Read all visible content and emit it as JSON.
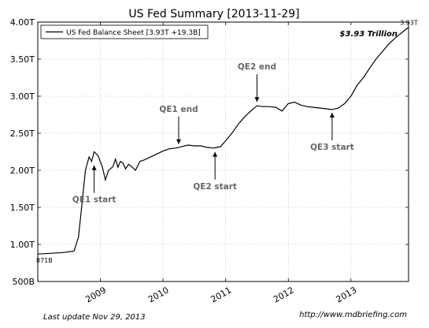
{
  "chart_data": {
    "type": "line",
    "title": "US Fed Summary  [2013-11-29]",
    "xlabel": "",
    "ylabel": "",
    "xlim": [
      2008.0,
      2013.92
    ],
    "ylim": [
      0.5,
      4.0
    ],
    "grid": true,
    "legend": {
      "placement": "top-left",
      "entries": [
        "US Fed Balance Sheet [3.93T +19.3B]"
      ]
    },
    "x_ticks": [
      {
        "value": 2009,
        "label": "2009"
      },
      {
        "value": 2010,
        "label": "2010"
      },
      {
        "value": 2011,
        "label": "2011"
      },
      {
        "value": 2012,
        "label": "2012"
      },
      {
        "value": 2013,
        "label": "2013"
      }
    ],
    "y_ticks": [
      {
        "value": 0.5,
        "label": "500B"
      },
      {
        "value": 1.0,
        "label": "1.00T"
      },
      {
        "value": 1.5,
        "label": "1.50T"
      },
      {
        "value": 2.0,
        "label": "2.00T"
      },
      {
        "value": 2.5,
        "label": "2.50T"
      },
      {
        "value": 3.0,
        "label": "3.00T"
      },
      {
        "value": 3.5,
        "label": "3.50T"
      },
      {
        "value": 4.0,
        "label": "4.00T"
      }
    ],
    "series": [
      {
        "name": "US Fed Balance Sheet [3.93T +19.3B]",
        "color": "#000000",
        "x": [
          2008.0,
          2008.2,
          2008.4,
          2008.58,
          2008.65,
          2008.7,
          2008.76,
          2008.82,
          2008.86,
          2008.9,
          2008.96,
          2009.03,
          2009.08,
          2009.13,
          2009.2,
          2009.24,
          2009.28,
          2009.32,
          2009.36,
          2009.4,
          2009.45,
          2009.5,
          2009.56,
          2009.63,
          2009.7,
          2009.8,
          2009.9,
          2010.0,
          2010.1,
          2010.2,
          2010.3,
          2010.4,
          2010.5,
          2010.6,
          2010.7,
          2010.8,
          2010.86,
          2010.92,
          2011.0,
          2011.1,
          2011.2,
          2011.3,
          2011.4,
          2011.5,
          2011.6,
          2011.7,
          2011.8,
          2011.9,
          2012.0,
          2012.1,
          2012.2,
          2012.3,
          2012.4,
          2012.5,
          2012.6,
          2012.7,
          2012.8,
          2012.9,
          2013.0,
          2013.1,
          2013.2,
          2013.3,
          2013.4,
          2013.5,
          2013.6,
          2013.7,
          2013.8,
          2013.92
        ],
        "y": [
          0.87,
          0.88,
          0.89,
          0.91,
          1.1,
          1.5,
          2.0,
          2.18,
          2.12,
          2.25,
          2.2,
          2.05,
          1.87,
          2.0,
          2.05,
          2.15,
          2.04,
          2.12,
          2.1,
          2.02,
          2.08,
          2.05,
          2.0,
          2.12,
          2.14,
          2.18,
          2.22,
          2.26,
          2.29,
          2.3,
          2.32,
          2.34,
          2.33,
          2.33,
          2.31,
          2.3,
          2.31,
          2.32,
          2.4,
          2.5,
          2.62,
          2.72,
          2.8,
          2.87,
          2.86,
          2.86,
          2.85,
          2.8,
          2.9,
          2.92,
          2.88,
          2.86,
          2.85,
          2.84,
          2.83,
          2.82,
          2.84,
          2.9,
          3.0,
          3.15,
          3.25,
          3.38,
          3.5,
          3.6,
          3.7,
          3.78,
          3.85,
          3.93
        ]
      }
    ],
    "annotations": [
      {
        "text": "QE1 start",
        "x": 2008.9,
        "y": 2.12,
        "label_pos": "below"
      },
      {
        "text": "QE1 end",
        "x": 2010.25,
        "y": 2.3,
        "label_pos": "above"
      },
      {
        "text": "QE2 start",
        "x": 2010.83,
        "y": 2.3,
        "label_pos": "below"
      },
      {
        "text": "QE2 end",
        "x": 2011.5,
        "y": 2.87,
        "label_pos": "above"
      },
      {
        "text": "QE3 start",
        "x": 2012.7,
        "y": 2.83,
        "label_pos": "below"
      }
    ],
    "start_label": "871B",
    "end_label": "3.93T",
    "highlight_label": "$3.93 Trillion",
    "footer_left": "Last update Nov 29, 2013",
    "footer_right": "http://www.mdbriefing.com"
  }
}
